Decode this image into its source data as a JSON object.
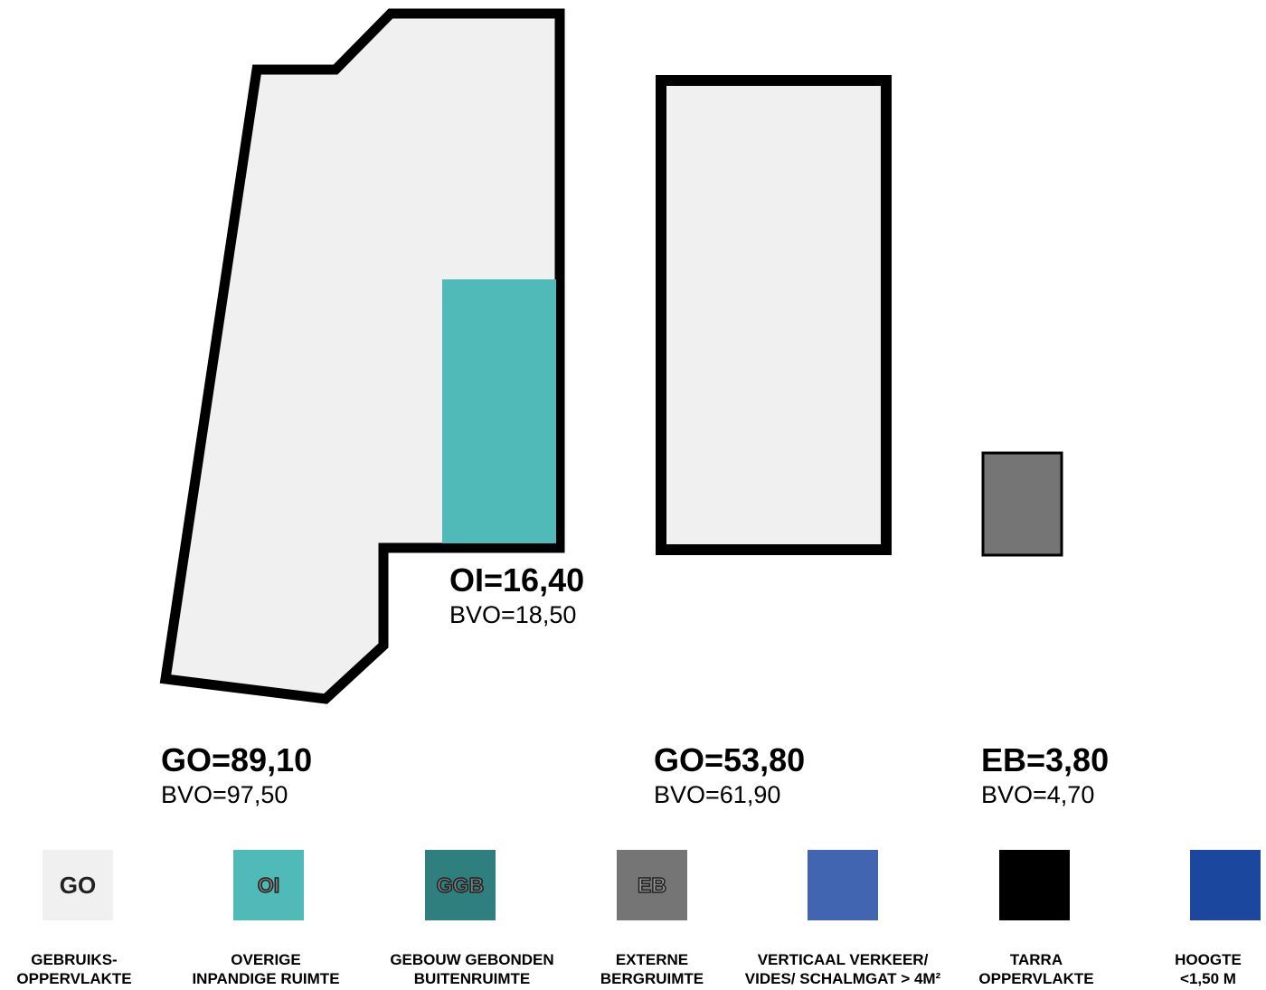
{
  "areas": {
    "go_left": {
      "main": "GO=89,10",
      "sub": "BVO=97,50"
    },
    "oi": {
      "main": "OI=16,40",
      "sub": "BVO=18,50"
    },
    "go_right": {
      "main": "GO=53,80",
      "sub": "BVO=61,90"
    },
    "eb": {
      "main": "EB=3,80",
      "sub": "BVO=4,70"
    }
  },
  "legend": [
    {
      "code": "GO",
      "line1": "GEBRUIKS-",
      "line2": "OPPERVLAKTE",
      "color": "#f0f0f0"
    },
    {
      "code": "OI",
      "line1": "OVERIGE",
      "line2": "INPANDIGE RUIMTE",
      "color": "#4fbab8"
    },
    {
      "code": "GGB",
      "line1": "GEBOUW GEBONDEN",
      "line2": "BUITENRUIMTE",
      "color": "#2f7f7f"
    },
    {
      "code": "EB",
      "line1": "EXTERNE",
      "line2": "BERGRUIMTE",
      "color": "#757575"
    },
    {
      "code": "",
      "line1": "VERTICAAL VERKEER/",
      "line2": "VIDES/ SCHALMGAT > 4M²",
      "color": "#4165b0"
    },
    {
      "code": "",
      "line1": "TARRA",
      "line2": "OPPERVLAKTE",
      "color": "#000000"
    },
    {
      "code": "",
      "line1": "HOOGTE",
      "line2": "<1,50 M",
      "color": "#1c479e"
    }
  ],
  "colors": {
    "go_fill": "#f0f0f0",
    "oi_fill": "#4fbab8",
    "eb_fill": "#757575",
    "outline": "#000000"
  }
}
